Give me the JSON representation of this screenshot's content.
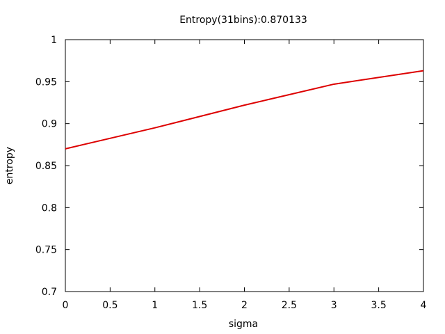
{
  "chart_data": {
    "type": "line",
    "title": "Entropy(31bins):0.870133",
    "xlabel": "sigma",
    "ylabel": "entropy",
    "xlim": [
      0,
      4
    ],
    "ylim": [
      0.7,
      1
    ],
    "x_ticks": [
      "0",
      "0.5",
      "1",
      "1.5",
      "2",
      "2.5",
      "3",
      "3.5",
      "4"
    ],
    "y_ticks": [
      "0.7",
      "0.75",
      "0.8",
      "0.85",
      "0.9",
      "0.95",
      "1"
    ],
    "grid": false,
    "series": [
      {
        "color": "#dd0000",
        "x": [
          0,
          1,
          2,
          3,
          4
        ],
        "y": [
          0.87,
          0.895,
          0.922,
          0.947,
          0.963
        ]
      }
    ]
  }
}
